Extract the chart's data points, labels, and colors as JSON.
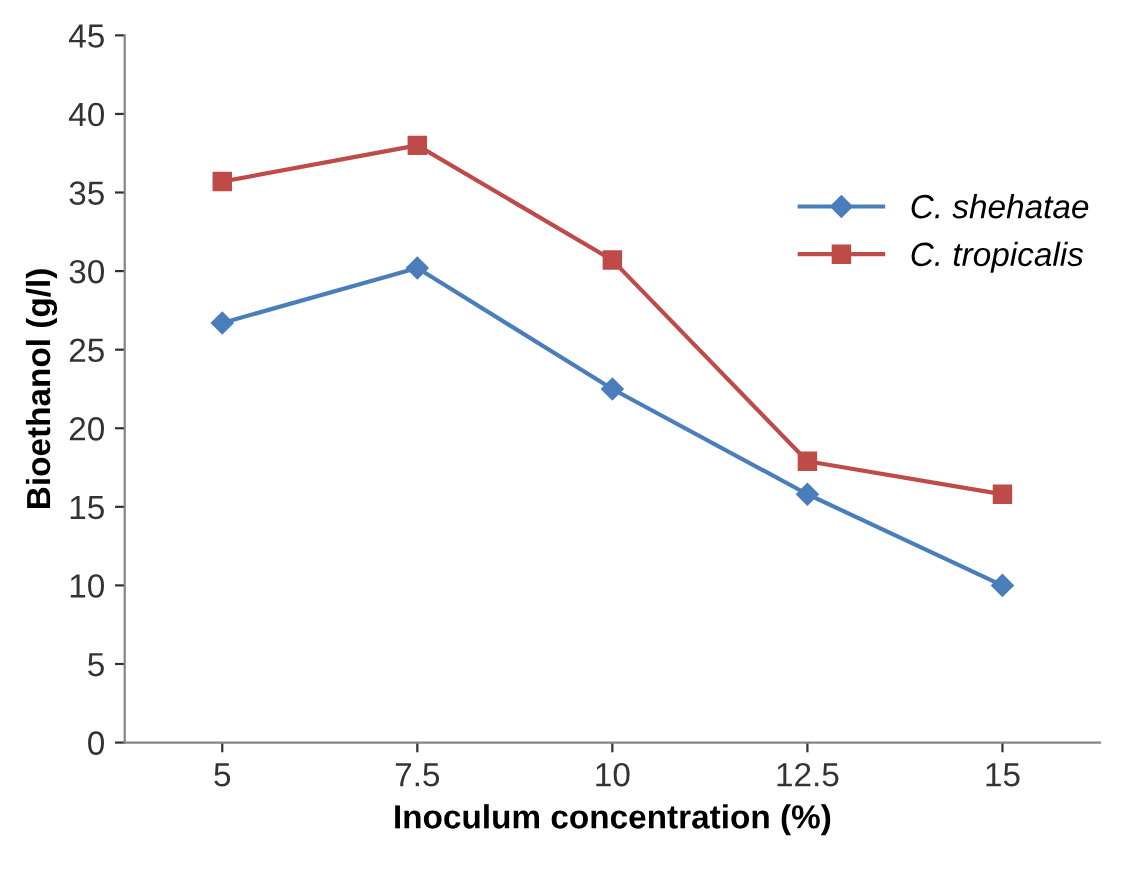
{
  "chart_data": {
    "type": "line",
    "xlabel": "Inoculum concentration (%)",
    "ylabel": "Bioethanol (g/l)",
    "categories": [
      "5",
      "7.5",
      "10",
      "12.5",
      "15"
    ],
    "series": [
      {
        "name": "C. shehatae",
        "color": "#4a7ebb",
        "marker": "diamond",
        "values": [
          26.7,
          30.2,
          22.5,
          15.8,
          10.0
        ]
      },
      {
        "name": "C. tropicalis",
        "color": "#be4b48",
        "marker": "square",
        "values": [
          35.7,
          38.0,
          30.7,
          17.9,
          15.8
        ]
      }
    ],
    "ylim": [
      0,
      45
    ],
    "yticks": [
      0,
      5,
      10,
      15,
      20,
      25,
      30,
      35,
      40,
      45
    ],
    "grid": false,
    "legend": "right"
  }
}
